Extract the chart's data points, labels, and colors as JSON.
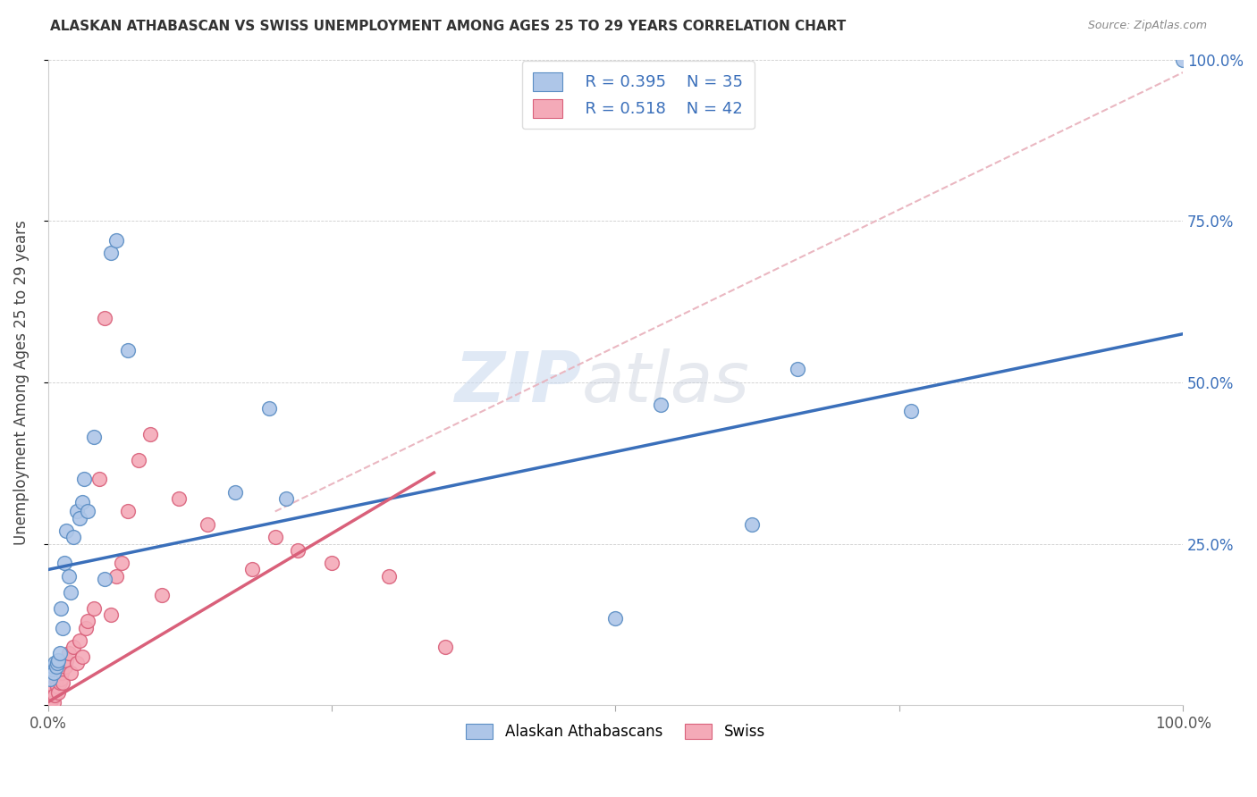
{
  "title": "ALASKAN ATHABASCAN VS SWISS UNEMPLOYMENT AMONG AGES 25 TO 29 YEARS CORRELATION CHART",
  "source": "Source: ZipAtlas.com",
  "ylabel": "Unemployment Among Ages 25 to 29 years",
  "xlim": [
    0,
    1.0
  ],
  "ylim": [
    0,
    1.0
  ],
  "ytick_right_labels": [
    "25.0%",
    "50.0%",
    "75.0%",
    "100.0%"
  ],
  "ytick_right_values": [
    0.25,
    0.5,
    0.75,
    1.0
  ],
  "blue_color": "#aec6e8",
  "blue_edge_color": "#5b8ec4",
  "pink_color": "#f4aab8",
  "pink_edge_color": "#d9607a",
  "blue_line_color": "#3a6fba",
  "pink_line_color": "#d9607a",
  "dashed_line_color": "#e8b0bb",
  "legend_text_color": "#3a6fba",
  "legend_R_blue": "R = 0.395",
  "legend_N_blue": "N = 35",
  "legend_R_pink": "R = 0.518",
  "legend_N_pink": "N = 42",
  "legend_label_blue": "Alaskan Athabascans",
  "legend_label_pink": "Swiss",
  "watermark_zip": "ZIP",
  "watermark_atlas": "atlas",
  "blue_scatter_x": [
    0.002,
    0.003,
    0.004,
    0.005,
    0.006,
    0.007,
    0.008,
    0.009,
    0.01,
    0.011,
    0.013,
    0.014,
    0.016,
    0.018,
    0.02,
    0.022,
    0.025,
    0.028,
    0.03,
    0.032,
    0.035,
    0.04,
    0.05,
    0.055,
    0.06,
    0.07,
    0.165,
    0.195,
    0.21,
    0.5,
    0.54,
    0.62,
    0.66,
    0.76,
    1.0
  ],
  "blue_scatter_y": [
    0.04,
    0.055,
    0.06,
    0.05,
    0.065,
    0.06,
    0.065,
    0.07,
    0.08,
    0.15,
    0.12,
    0.22,
    0.27,
    0.2,
    0.175,
    0.26,
    0.3,
    0.29,
    0.315,
    0.35,
    0.3,
    0.415,
    0.195,
    0.7,
    0.72,
    0.55,
    0.33,
    0.46,
    0.32,
    0.135,
    0.465,
    0.28,
    0.52,
    0.455,
    1.0
  ],
  "pink_scatter_x": [
    0.001,
    0.002,
    0.003,
    0.004,
    0.005,
    0.005,
    0.006,
    0.007,
    0.008,
    0.009,
    0.01,
    0.011,
    0.012,
    0.013,
    0.015,
    0.016,
    0.018,
    0.02,
    0.022,
    0.025,
    0.028,
    0.03,
    0.033,
    0.035,
    0.04,
    0.045,
    0.05,
    0.055,
    0.06,
    0.065,
    0.07,
    0.08,
    0.09,
    0.1,
    0.115,
    0.14,
    0.18,
    0.2,
    0.22,
    0.25,
    0.3,
    0.35
  ],
  "pink_scatter_y": [
    0.01,
    0.005,
    0.01,
    0.02,
    0.005,
    0.03,
    0.015,
    0.04,
    0.03,
    0.02,
    0.035,
    0.04,
    0.05,
    0.035,
    0.06,
    0.07,
    0.08,
    0.05,
    0.09,
    0.065,
    0.1,
    0.075,
    0.12,
    0.13,
    0.15,
    0.35,
    0.6,
    0.14,
    0.2,
    0.22,
    0.3,
    0.38,
    0.42,
    0.17,
    0.32,
    0.28,
    0.21,
    0.26,
    0.24,
    0.22,
    0.2,
    0.09
  ],
  "blue_trend_x": [
    0.0,
    1.0
  ],
  "blue_trend_y": [
    0.21,
    0.575
  ],
  "pink_trend_x": [
    0.0,
    0.34
  ],
  "pink_trend_y": [
    0.005,
    0.36
  ],
  "dashed_trend_x": [
    0.2,
    1.0
  ],
  "dashed_trend_y": [
    0.3,
    0.98
  ]
}
